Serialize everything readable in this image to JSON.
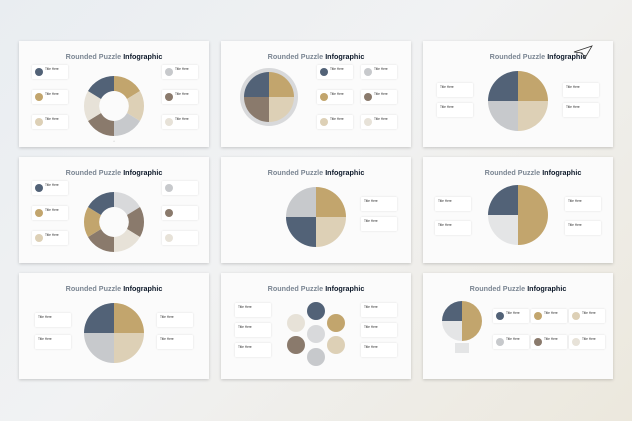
{
  "slide_title_a": "Rounded Puzzle",
  "slide_title_b": "Infographic",
  "card_title": "Title Here",
  "colors": {
    "navy": "#526277",
    "gold": "#c2a56d",
    "sand": "#ddd0b6",
    "taupe": "#8a7a6c",
    "grey": "#c7c9cc",
    "light": "#e7e2d8"
  }
}
